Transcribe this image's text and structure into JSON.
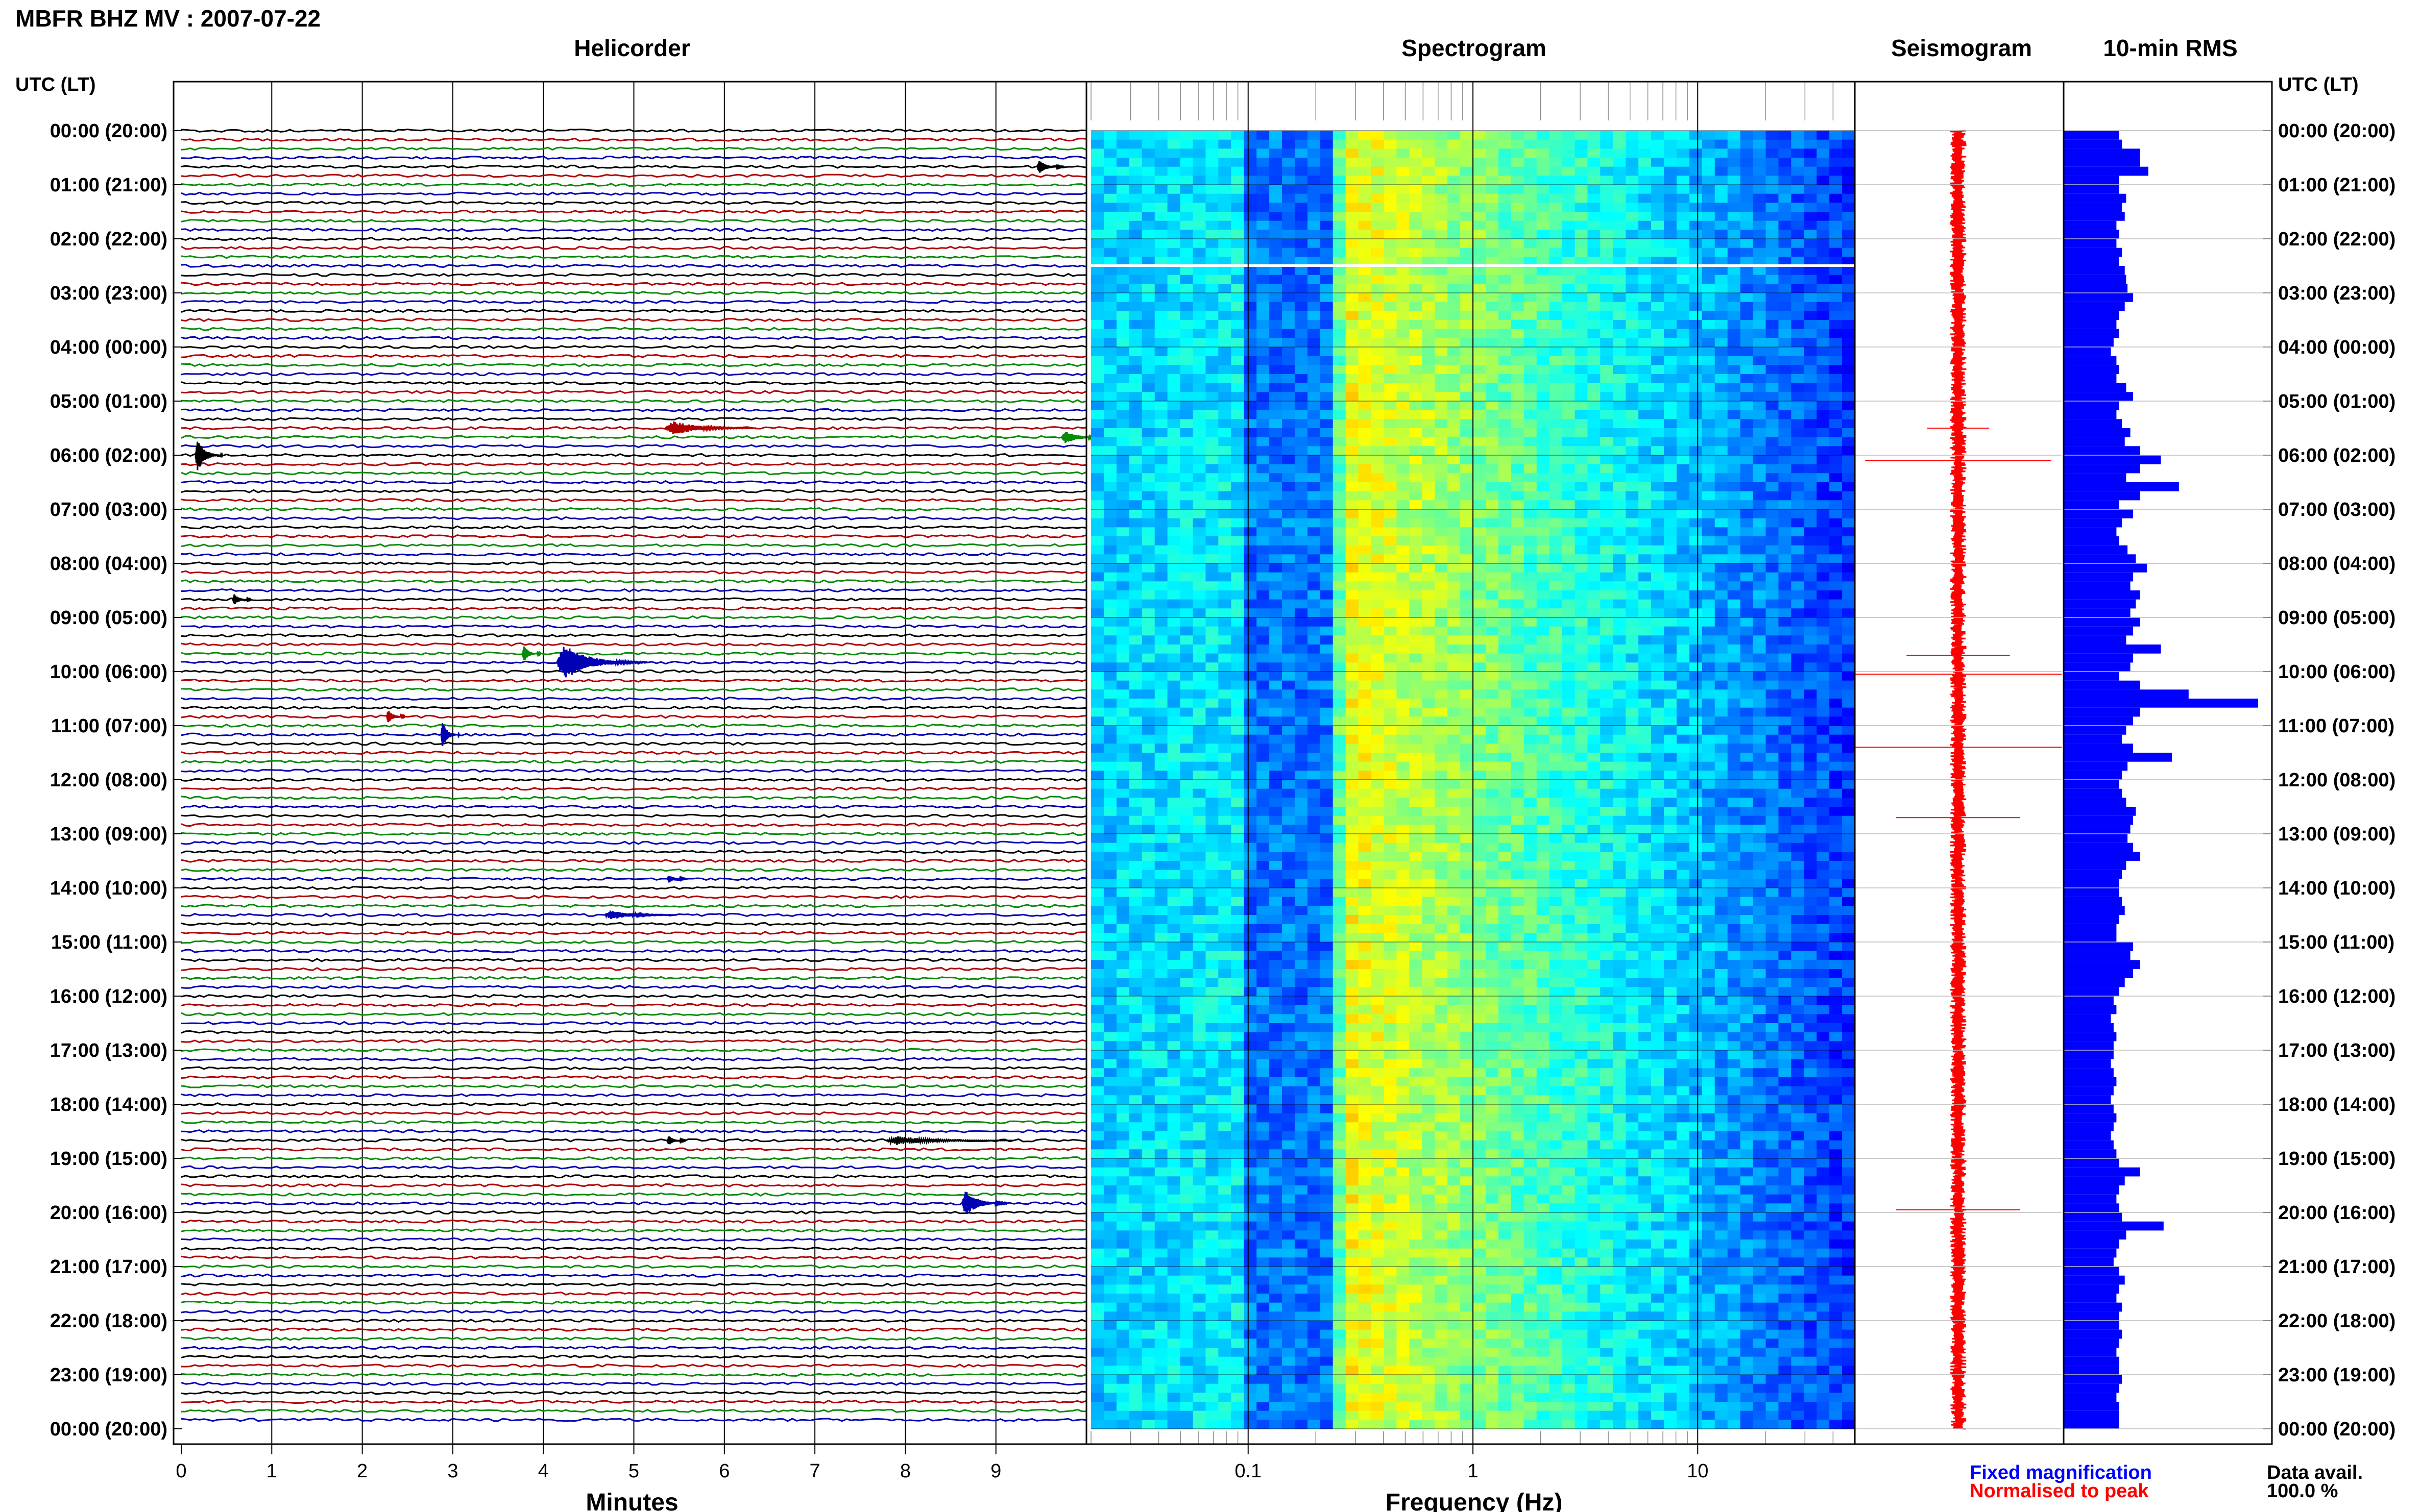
{
  "header": {
    "title": "MBFR BHZ MV : 2007-07-22"
  },
  "panels": {
    "helicorder": "Helicorder",
    "spectrogram": "Spectrogram",
    "seismogram": "Seismogram",
    "rms": "10-min RMS"
  },
  "time_axis_label": "UTC (LT)",
  "time_labels": [
    "00:00 (20:00)",
    "01:00 (21:00)",
    "02:00 (22:00)",
    "03:00 (23:00)",
    "04:00 (00:00)",
    "05:00 (01:00)",
    "06:00 (02:00)",
    "07:00 (03:00)",
    "08:00 (04:00)",
    "09:00 (05:00)",
    "10:00 (06:00)",
    "11:00 (07:00)",
    "12:00 (08:00)",
    "13:00 (09:00)",
    "14:00 (10:00)",
    "15:00 (11:00)",
    "16:00 (12:00)",
    "17:00 (13:00)",
    "18:00 (14:00)",
    "19:00 (15:00)",
    "20:00 (16:00)",
    "21:00 (17:00)",
    "22:00 (18:00)",
    "23:00 (19:00)",
    "00:00 (20:00)"
  ],
  "footer": {
    "minutes_label": "Minutes",
    "frequency_label": "Frequency (Hz)",
    "legend_fixed": "Fixed magnification",
    "legend_normalised": "Normalised to peak",
    "data_avail_label": "Data avail.",
    "data_avail_value": "100.0 %"
  },
  "colors": {
    "trace_cycle": [
      "#000000",
      "#b00000",
      "#0a8a0a",
      "#0000b4"
    ],
    "fixed": "#0000ff",
    "normalised": "#ff0000"
  },
  "chart_data": [
    {
      "type": "line",
      "name": "helicorder",
      "xlabel": "Minutes",
      "xlim": [
        0,
        10
      ],
      "x_ticks": [
        0,
        1,
        2,
        3,
        4,
        5,
        6,
        7,
        8,
        9
      ],
      "ylim_hours": [
        0,
        24
      ],
      "lines_per_hour": 6,
      "events": [
        {
          "hour": 9.83,
          "minute": 4.3,
          "amp": 2.2,
          "dur": 1.0
        },
        {
          "hour": 9.67,
          "minute": 3.8,
          "amp": 1.0,
          "dur": 0.2
        },
        {
          "hour": 10.83,
          "minute": 2.3,
          "amp": 0.8,
          "dur": 0.2
        },
        {
          "hour": 11.17,
          "minute": 2.9,
          "amp": 1.6,
          "dur": 0.2
        },
        {
          "hour": 6.0,
          "minute": 0.2,
          "amp": 2.0,
          "dur": 0.3
        },
        {
          "hour": 19.83,
          "minute": 8.7,
          "amp": 1.6,
          "dur": 0.5
        },
        {
          "hour": 5.5,
          "minute": 5.5,
          "amp": 0.9,
          "dur": 1.0
        },
        {
          "hour": 5.67,
          "minute": 9.8,
          "amp": 0.8,
          "dur": 0.5
        },
        {
          "hour": 14.5,
          "minute": 4.8,
          "amp": 0.6,
          "dur": 0.8
        },
        {
          "hour": 18.67,
          "minute": 8.0,
          "amp": 0.6,
          "dur": 1.4
        },
        {
          "hour": 0.67,
          "minute": 9.5,
          "amp": 0.8,
          "dur": 0.3
        },
        {
          "hour": 8.67,
          "minute": 0.6,
          "amp": 0.7,
          "dur": 0.2
        },
        {
          "hour": 18.67,
          "minute": 5.4,
          "amp": 0.6,
          "dur": 0.2
        },
        {
          "hour": 13.83,
          "minute": 5.4,
          "amp": 0.5,
          "dur": 0.2
        }
      ]
    },
    {
      "type": "heatmap",
      "name": "spectrogram",
      "xlabel": "Frequency (Hz)",
      "xscale": "log",
      "xlim": [
        0.02,
        50
      ],
      "x_tick_labels": [
        {
          "value": 0.1,
          "label": "0.1"
        },
        {
          "value": 1,
          "label": "1"
        },
        {
          "value": 10,
          "label": "10"
        }
      ],
      "ylim_hours": [
        0,
        24
      ],
      "colormap": "jet",
      "peak_frequency_hz": 0.27
    },
    {
      "type": "line",
      "name": "seismogram",
      "ylim_hours": [
        0,
        24
      ],
      "spikes": [
        {
          "hour": 6.1,
          "amp": 0.9
        },
        {
          "hour": 10.05,
          "amp": 1.0
        },
        {
          "hour": 9.7,
          "amp": 0.5
        },
        {
          "hour": 11.4,
          "amp": 1.0
        },
        {
          "hour": 12.7,
          "amp": 0.6
        },
        {
          "hour": 19.95,
          "amp": 0.6
        },
        {
          "hour": 5.5,
          "amp": 0.3
        }
      ]
    },
    {
      "type": "bar",
      "name": "10-min RMS",
      "orientation": "horizontal",
      "ylim_hours": [
        0,
        24
      ],
      "interval_minutes": 10,
      "values_by_hour": [
        [
          0.4,
          0.42,
          0.55,
          0.55,
          0.61,
          0.4
        ],
        [
          0.4,
          0.45,
          0.42,
          0.44,
          0.38,
          0.4
        ],
        [
          0.38,
          0.42,
          0.4,
          0.44,
          0.45,
          0.46
        ],
        [
          0.5,
          0.44,
          0.4,
          0.38,
          0.4,
          0.36
        ],
        [
          0.34,
          0.38,
          0.4,
          0.38,
          0.45,
          0.5
        ],
        [
          0.4,
          0.38,
          0.42,
          0.48,
          0.44,
          0.55
        ],
        [
          0.7,
          0.55,
          0.45,
          0.83,
          0.55,
          0.4
        ],
        [
          0.5,
          0.42,
          0.38,
          0.4,
          0.46,
          0.52
        ],
        [
          0.6,
          0.5,
          0.48,
          0.55,
          0.52,
          0.48
        ],
        [
          0.55,
          0.5,
          0.45,
          0.7,
          0.5,
          0.48
        ],
        [
          0.4,
          0.55,
          0.9,
          1.4,
          0.55,
          0.5
        ],
        [
          0.45,
          0.42,
          0.5,
          0.78,
          0.46,
          0.42
        ],
        [
          0.4,
          0.42,
          0.45,
          0.52,
          0.5,
          0.48
        ],
        [
          0.46,
          0.5,
          0.55,
          0.45,
          0.42,
          0.4
        ],
        [
          0.4,
          0.42,
          0.44,
          0.4,
          0.38,
          0.38
        ],
        [
          0.5,
          0.48,
          0.55,
          0.5,
          0.44,
          0.4
        ],
        [
          0.36,
          0.38,
          0.34,
          0.36,
          0.38,
          0.36
        ],
        [
          0.36,
          0.34,
          0.36,
          0.38,
          0.36,
          0.34
        ],
        [
          0.36,
          0.38,
          0.36,
          0.34,
          0.36,
          0.38
        ],
        [
          0.4,
          0.55,
          0.44,
          0.4,
          0.38,
          0.4
        ],
        [
          0.42,
          0.72,
          0.45,
          0.4,
          0.38,
          0.36
        ],
        [
          0.4,
          0.44,
          0.4,
          0.38,
          0.42,
          0.4
        ],
        [
          0.4,
          0.42,
          0.4,
          0.38,
          0.4,
          0.4
        ],
        [
          0.42,
          0.4,
          0.38,
          0.4,
          0.4,
          0.4
        ]
      ]
    }
  ]
}
